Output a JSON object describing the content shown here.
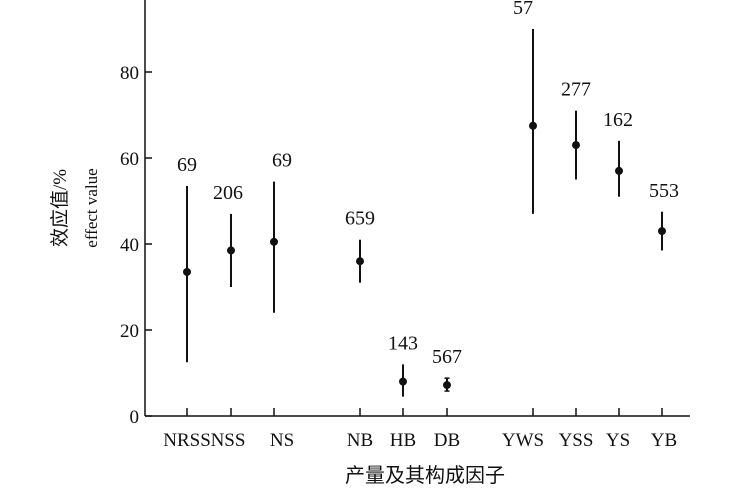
{
  "chart_data": {
    "type": "scatter",
    "subtype": "errorbar",
    "ylabel_cn": "效应值/%",
    "ylabel_en": "effect value",
    "xlabel": "产量及其构成因子",
    "ylim": [
      0,
      95
    ],
    "yticks": [
      0,
      20,
      40,
      60,
      80
    ],
    "groups": [
      [
        "NRSS",
        "NSS",
        "NS"
      ],
      [
        "NB",
        "HB",
        "DB"
      ],
      [
        "YWS",
        "YSS",
        "YS",
        "YB"
      ]
    ],
    "categories": [
      "NRSS",
      "NSS",
      "NS",
      "NB",
      "HB",
      "DB",
      "YWS",
      "YSS",
      "YS",
      "YB"
    ],
    "points": [
      {
        "category": "NRSS",
        "value": 33.5,
        "lower": 12.5,
        "upper": 53.5,
        "n": "69"
      },
      {
        "category": "NSS",
        "value": 38.5,
        "lower": 30.0,
        "upper": 47.0,
        "n": "206"
      },
      {
        "category": "NS",
        "value": 40.5,
        "lower": 24.0,
        "upper": 54.5,
        "n": "69"
      },
      {
        "category": "NB",
        "value": 36.0,
        "lower": 31.0,
        "upper": 41.0,
        "n": "659"
      },
      {
        "category": "HB",
        "value": 8.0,
        "lower": 4.5,
        "upper": 12.0,
        "n": "143"
      },
      {
        "category": "DB",
        "value": 7.2,
        "lower": 5.8,
        "upper": 8.8,
        "n": "567"
      },
      {
        "category": "YWS",
        "value": 67.5,
        "lower": 47.0,
        "upper": 90.0,
        "n": "57"
      },
      {
        "category": "YSS",
        "value": 63.0,
        "lower": 55.0,
        "upper": 71.0,
        "n": "277"
      },
      {
        "category": "YS",
        "value": 57.0,
        "lower": 51.0,
        "upper": 64.0,
        "n": "162"
      },
      {
        "category": "YB",
        "value": 43.0,
        "lower": 38.5,
        "upper": 47.5,
        "n": "553"
      }
    ],
    "legend": "none",
    "grid": false
  }
}
